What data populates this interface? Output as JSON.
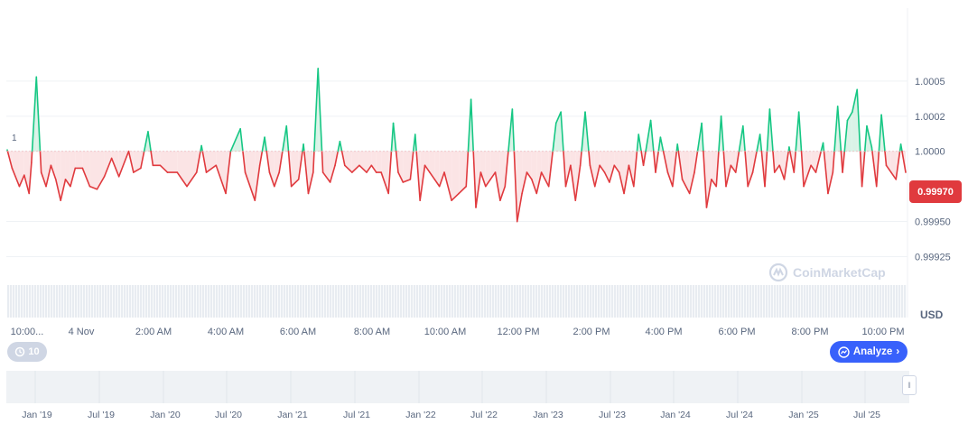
{
  "chart_data": {
    "type": "line",
    "title": "",
    "currency": "USD",
    "reference_value": 1.0,
    "current_price": "0.99970",
    "ylim": [
      0.99915,
      1.00102
    ],
    "y_ticks": [
      "1.0005",
      "1.0002",
      "1.0000",
      "0.99950",
      "0.99925"
    ],
    "y_tick_values": [
      1.0005,
      1.00025,
      1.0,
      0.9995,
      0.99925
    ],
    "x_ticks": [
      "10:00...",
      "4 Nov",
      "2:00 AM",
      "4:00 AM",
      "6:00 AM",
      "8:00 AM",
      "10:00 AM",
      "12:00 PM",
      "2:00 PM",
      "4:00 PM",
      "6:00 PM",
      "8:00 PM",
      "10:00 PM"
    ],
    "baseline_label": "1",
    "navigator_ticks": [
      "Jan '19",
      "Jul '19",
      "Jan '20",
      "Jul '20",
      "Jan '21",
      "Jul '21",
      "Jan '22",
      "Jul '22",
      "Jan '23",
      "Jul '23",
      "Jan '24",
      "Jul '24",
      "Jan '25",
      "Jul '25"
    ],
    "anchors": [
      [
        0,
        1.00001
      ],
      [
        2,
        0.99988
      ],
      [
        5,
        0.99975
      ],
      [
        7,
        0.99983
      ],
      [
        9,
        0.9997
      ],
      [
        10,
        0.99992
      ],
      [
        12,
        1.00053
      ],
      [
        14,
        0.99985
      ],
      [
        16,
        0.99975
      ],
      [
        18,
        0.9999
      ],
      [
        20,
        0.9998
      ],
      [
        22,
        0.99965
      ],
      [
        24,
        0.9998
      ],
      [
        26,
        0.99975
      ],
      [
        28,
        0.99988
      ],
      [
        31,
        0.99988
      ],
      [
        34,
        0.99975
      ],
      [
        37,
        0.99973
      ],
      [
        40,
        0.99982
      ],
      [
        43,
        0.99995
      ],
      [
        46,
        0.99982
      ],
      [
        50,
        1.0
      ],
      [
        52,
        0.99985
      ],
      [
        55,
        0.99988
      ],
      [
        58,
        1.00014
      ],
      [
        60,
        0.9999
      ],
      [
        63,
        0.9999
      ],
      [
        66,
        0.99985
      ],
      [
        70,
        0.99985
      ],
      [
        74,
        0.99975
      ],
      [
        78,
        0.99985
      ],
      [
        80,
        1.00004
      ],
      [
        82,
        0.99985
      ],
      [
        86,
        0.9999
      ],
      [
        90,
        0.9997
      ],
      [
        92,
        1.0
      ],
      [
        96,
        1.00016
      ],
      [
        98,
        0.99985
      ],
      [
        102,
        0.99965
      ],
      [
        104,
        0.9999
      ],
      [
        106,
        1.0001
      ],
      [
        108,
        0.99985
      ],
      [
        110,
        0.99975
      ],
      [
        112,
        0.99985
      ],
      [
        115,
        1.00018
      ],
      [
        117,
        0.99975
      ],
      [
        120,
        0.9998
      ],
      [
        122,
        1.00005
      ],
      [
        124,
        0.9997
      ],
      [
        126,
        0.99985
      ],
      [
        128,
        1.00059
      ],
      [
        130,
        0.99985
      ],
      [
        133,
        0.99978
      ],
      [
        135,
        0.9999
      ],
      [
        137,
        1.00007
      ],
      [
        139,
        0.9999
      ],
      [
        142,
        0.99985
      ],
      [
        145,
        0.9999
      ],
      [
        148,
        0.99985
      ],
      [
        150,
        0.9999
      ],
      [
        152,
        0.99985
      ],
      [
        154,
        0.99985
      ],
      [
        157,
        0.9997
      ],
      [
        159,
        1.0002
      ],
      [
        161,
        0.99985
      ],
      [
        163,
        0.99978
      ],
      [
        166,
        0.9998
      ],
      [
        168,
        1.00012
      ],
      [
        170,
        0.99965
      ],
      [
        172,
        0.9999
      ],
      [
        174,
        0.99985
      ],
      [
        176,
        0.9998
      ],
      [
        178,
        0.99975
      ],
      [
        180,
        0.99985
      ],
      [
        183,
        0.99965
      ],
      [
        186,
        0.9997
      ],
      [
        189,
        0.99975
      ],
      [
        191,
        1.00037
      ],
      [
        193,
        0.9996
      ],
      [
        195,
        0.99985
      ],
      [
        197,
        0.99975
      ],
      [
        199,
        0.9998
      ],
      [
        201,
        0.99985
      ],
      [
        203,
        0.99965
      ],
      [
        205,
        0.99975
      ],
      [
        208,
        1.0003
      ],
      [
        210,
        0.9995
      ],
      [
        212,
        0.9997
      ],
      [
        214,
        0.99985
      ],
      [
        216,
        0.9998
      ],
      [
        218,
        0.9997
      ],
      [
        220,
        0.99985
      ],
      [
        223,
        0.99975
      ],
      [
        226,
        1.0002
      ],
      [
        228,
        1.00028
      ],
      [
        230,
        0.99975
      ],
      [
        232,
        0.9999
      ],
      [
        234,
        0.99965
      ],
      [
        236,
        0.9999
      ],
      [
        238,
        1.00028
      ],
      [
        240,
        0.9999
      ],
      [
        242,
        0.99975
      ],
      [
        244,
        0.9999
      ],
      [
        246,
        0.99985
      ],
      [
        248,
        0.99978
      ],
      [
        250,
        0.9999
      ],
      [
        252,
        0.99985
      ],
      [
        254,
        0.9997
      ],
      [
        256,
        0.9999
      ],
      [
        258,
        0.99975
      ],
      [
        260,
        1.00012
      ],
      [
        262,
        0.9999
      ],
      [
        265,
        1.00022
      ],
      [
        267,
        0.99985
      ],
      [
        269,
        1.0001
      ],
      [
        272,
        0.99985
      ],
      [
        274,
        0.99975
      ],
      [
        276,
        1.00005
      ],
      [
        278,
        0.9998
      ],
      [
        281,
        0.9997
      ],
      [
        283,
        0.99985
      ],
      [
        286,
        1.0002
      ],
      [
        288,
        0.9996
      ],
      [
        290,
        0.9998
      ],
      [
        292,
        0.99975
      ],
      [
        294,
        1.00025
      ],
      [
        296,
        0.99975
      ],
      [
        298,
        0.9999
      ],
      [
        300,
        0.99985
      ],
      [
        303,
        1.00018
      ],
      [
        305,
        0.99975
      ],
      [
        307,
        0.99985
      ],
      [
        310,
        1.00012
      ],
      [
        312,
        0.99975
      ],
      [
        314,
        1.0003
      ],
      [
        316,
        0.99985
      ],
      [
        318,
        0.9999
      ],
      [
        320,
        0.9998
      ],
      [
        322,
        1.00003
      ],
      [
        324,
        0.99985
      ],
      [
        326,
        1.00028
      ],
      [
        328,
        0.99975
      ],
      [
        331,
        0.9999
      ],
      [
        333,
        0.99985
      ],
      [
        336,
        1.00006
      ],
      [
        338,
        0.9997
      ],
      [
        340,
        0.99985
      ],
      [
        342,
        1.00032
      ],
      [
        344,
        0.99985
      ],
      [
        346,
        1.00022
      ],
      [
        348,
        1.00028
      ],
      [
        350,
        1.00044
      ],
      [
        352,
        0.99975
      ],
      [
        354,
        1.00018
      ],
      [
        356,
        1.00003
      ],
      [
        358,
        0.99975
      ],
      [
        360,
        1.00026
      ],
      [
        362,
        0.9999
      ],
      [
        364,
        0.99985
      ],
      [
        366,
        0.9998
      ],
      [
        368,
        1.00005
      ],
      [
        370,
        0.99985
      ]
    ],
    "volume_series": "uniform light bars along the bottom of the plot"
  },
  "axis": {
    "currency_label": "USD",
    "current_price_badge": "0.99970",
    "baseline_marker": "1"
  },
  "controls": {
    "history_label": "10",
    "analyze_label": "Analyze"
  },
  "branding": {
    "watermark": "CoinMarketCap"
  },
  "colors": {
    "up": "#16c784",
    "down": "#e03a3e",
    "up_fill": "#d9f3e7",
    "down_fill": "#fbe4e5",
    "accent": "#3861fb",
    "grid": "#eff2f5"
  }
}
